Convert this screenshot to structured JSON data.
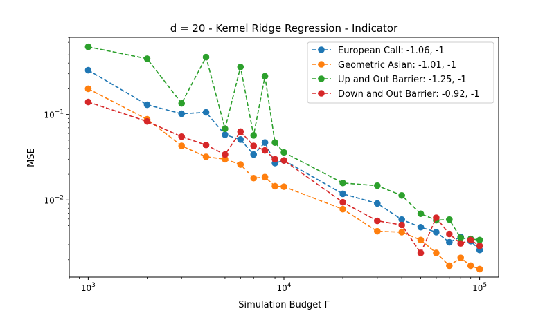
{
  "chart_data": {
    "type": "line",
    "title": "d = 20 - Kernel Ridge Regression - Indicator",
    "xlabel": "Simulation Budget Γ",
    "ylabel": "MSE",
    "xscale": "log",
    "yscale": "log",
    "xlim": [
      800,
      125000
    ],
    "ylim": [
      0.00125,
      0.8
    ],
    "grid": false,
    "legend_position": "top-right",
    "x_ticks": [
      {
        "value": 1000,
        "base": "10",
        "exp": "3"
      },
      {
        "value": 10000,
        "base": "10",
        "exp": "4"
      },
      {
        "value": 100000,
        "base": "10",
        "exp": "5"
      }
    ],
    "y_ticks": [
      {
        "value": 0.01,
        "base": "10",
        "exp": "−2"
      },
      {
        "value": 0.1,
        "base": "10",
        "exp": "−1"
      }
    ],
    "x": [
      1000,
      2000,
      3000,
      4000,
      5000,
      6000,
      7000,
      8000,
      9000,
      10000,
      20000,
      30000,
      40000,
      50000,
      60000,
      70000,
      80000,
      90000,
      100000
    ],
    "series": [
      {
        "name": "European Call: -1.06, -1",
        "color": "#1f77b4",
        "values": [
          0.33,
          0.13,
          0.102,
          0.106,
          0.058,
          0.051,
          0.034,
          0.047,
          0.027,
          0.029,
          0.0118,
          0.0091,
          0.0059,
          0.0048,
          0.0042,
          0.0032,
          0.0037,
          0.0033,
          0.0026
        ]
      },
      {
        "name": "Geometric Asian: -1.01, -1",
        "color": "#ff7f0e",
        "values": [
          0.2,
          0.088,
          0.043,
          0.032,
          0.03,
          0.026,
          0.018,
          0.0185,
          0.0145,
          0.0143,
          0.0078,
          0.0043,
          0.0042,
          0.0034,
          0.0024,
          0.0017,
          0.0021,
          0.0017,
          0.00155
        ]
      },
      {
        "name": "Up and Out Barrier: -1.25, -1",
        "color": "#2ca02c",
        "values": [
          0.62,
          0.45,
          0.135,
          0.47,
          0.068,
          0.36,
          0.057,
          0.28,
          0.047,
          0.036,
          0.0158,
          0.0147,
          0.0113,
          0.0069,
          0.0058,
          0.0059,
          0.0036,
          0.0035,
          0.0034
        ]
      },
      {
        "name": "Down and Out Barrier: -0.92, -1",
        "color": "#d62728",
        "values": [
          0.14,
          0.083,
          0.055,
          0.044,
          0.034,
          0.063,
          0.043,
          0.038,
          0.03,
          0.029,
          0.0094,
          0.0057,
          0.0051,
          0.0024,
          0.0062,
          0.004,
          0.0031,
          0.0034,
          0.0029
        ]
      }
    ]
  }
}
